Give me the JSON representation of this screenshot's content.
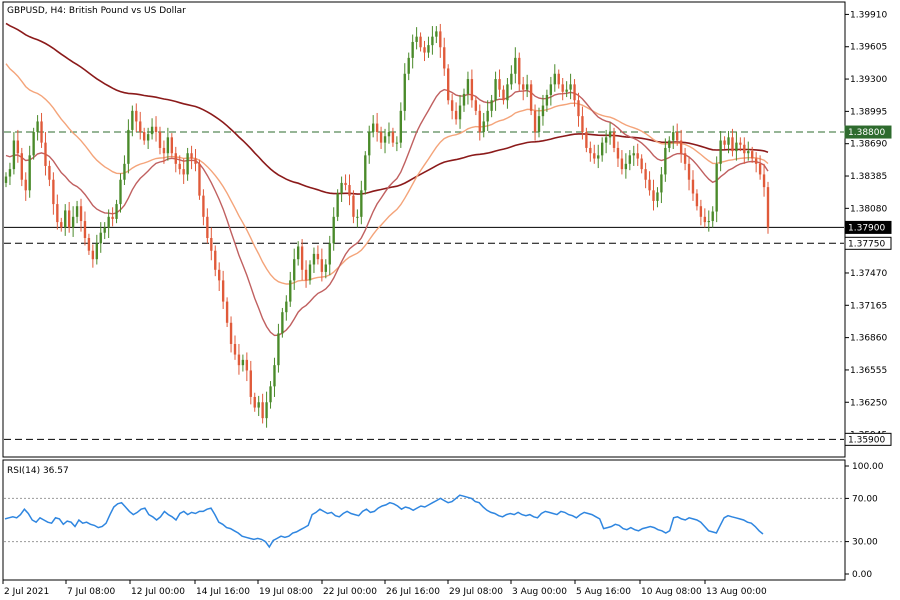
{
  "chart_data": [
    {
      "type": "candlestick",
      "title": "GBPUSD, H4:  British Pound vs US Dollar",
      "price_ticks": [
        "1.39910",
        "1.39605",
        "1.39300",
        "1.38995",
        "1.38690",
        "1.38385",
        "1.38080",
        "1.37470",
        "1.37165",
        "1.36860",
        "1.36555",
        "1.36250",
        "1.35945"
      ],
      "ylim": [
        1.3579,
        1.3998
      ],
      "levels": [
        {
          "label": "1.38800",
          "value": 1.388,
          "style": "dashed",
          "color": "#2e6b2e",
          "badge_bg": "#2e6b2e",
          "badge_fg": "#ffffff"
        },
        {
          "label": "1.37900",
          "value": 1.379,
          "style": "solid",
          "color": "#000000",
          "badge_bg": "#000000",
          "badge_fg": "#ffffff"
        },
        {
          "label": "1.37750",
          "value": 1.3775,
          "style": "dashed",
          "color": "#000000",
          "badge_bg": "#ffffff",
          "badge_fg": "#000000"
        },
        {
          "label": "1.35900",
          "value": 1.359,
          "style": "dashed",
          "color": "#000000",
          "badge_bg": "#ffffff",
          "badge_fg": "#000000"
        }
      ],
      "x_labels": [
        "2 Jul 2021",
        "7 Jul 08:00",
        "12 Jul 00:00",
        "14 Jul 16:00",
        "19 Jul 08:00",
        "22 Jul 00:00",
        "26 Jul 16:00",
        "29 Jul 08:00",
        "3 Aug 00:00",
        "5 Aug 16:00",
        "10 Aug 08:00",
        "13 Aug 00:00"
      ],
      "colors": {
        "bull": "#4a8a2a",
        "bear": "#e05a3a",
        "ma_slow": "#8b1a1a",
        "ma_mid": "#c06060",
        "ma_fast": "#f4a47a"
      },
      "closes": [
        1.3838,
        1.3845,
        1.3872,
        1.386,
        1.3835,
        1.3825,
        1.3858,
        1.388,
        1.389,
        1.387,
        1.3848,
        1.3835,
        1.3812,
        1.3795,
        1.379,
        1.3806,
        1.379,
        1.38,
        1.381,
        1.3796,
        1.378,
        1.3768,
        1.376,
        1.3775,
        1.3785,
        1.379,
        1.38,
        1.3798,
        1.3812,
        1.3835,
        1.385,
        1.3882,
        1.39,
        1.389,
        1.388,
        1.3872,
        1.3878,
        1.3885,
        1.388,
        1.3865,
        1.386,
        1.3875,
        1.386,
        1.385,
        1.3845,
        1.384,
        1.386,
        1.3855,
        1.385,
        1.382,
        1.38,
        1.378,
        1.3768,
        1.375,
        1.374,
        1.372,
        1.37,
        1.368,
        1.367,
        1.366,
        1.3665,
        1.3655,
        1.363,
        1.362,
        1.3625,
        1.361,
        1.3625,
        1.364,
        1.366,
        1.369,
        1.371,
        1.372,
        1.374,
        1.376,
        1.3772,
        1.375,
        1.374,
        1.3755,
        1.3765,
        1.376,
        1.3748,
        1.3755,
        1.3775,
        1.38,
        1.3822,
        1.3832,
        1.383,
        1.382,
        1.38,
        1.38,
        1.3825,
        1.3858,
        1.388,
        1.3888,
        1.388,
        1.387,
        1.3876,
        1.388,
        1.387,
        1.387,
        1.39,
        1.3935,
        1.395,
        1.3965,
        1.397,
        1.396,
        1.3955,
        1.3962,
        1.397,
        1.3975,
        1.396,
        1.394,
        1.391,
        1.39,
        1.3892,
        1.3905,
        1.3916,
        1.393,
        1.391,
        1.39,
        1.388,
        1.389,
        1.39,
        1.391,
        1.393,
        1.392,
        1.391,
        1.3925,
        1.3935,
        1.395,
        1.3925,
        1.392,
        1.3925,
        1.39,
        1.388,
        1.3895,
        1.3905,
        1.3915,
        1.3925,
        1.3935,
        1.3925,
        1.3918,
        1.392,
        1.3925,
        1.391,
        1.3895,
        1.388,
        1.3865,
        1.386,
        1.3855,
        1.3858,
        1.387,
        1.3875,
        1.388,
        1.3865,
        1.3855,
        1.3845,
        1.385,
        1.3858,
        1.386,
        1.3855,
        1.3845,
        1.3835,
        1.3825,
        1.3815,
        1.3823,
        1.384,
        1.3865,
        1.3872,
        1.388,
        1.3872,
        1.386,
        1.385,
        1.3835,
        1.3822,
        1.381,
        1.38,
        1.3795,
        1.3796,
        1.3805,
        1.385,
        1.3872,
        1.3868,
        1.3875,
        1.3862,
        1.387,
        1.3868,
        1.386,
        1.3862,
        1.3855,
        1.385,
        1.384,
        1.3828,
        1.379
      ],
      "rsi": {
        "label": "RSI(14) 36.57",
        "ticks": [
          "100.00",
          "70.00",
          "30.00",
          "0.00"
        ],
        "ylim": [
          0,
          100
        ],
        "levels": [
          70,
          30
        ],
        "color": "#2f86e0",
        "values": [
          51,
          52,
          53,
          52,
          55,
          60,
          56,
          50,
          48,
          52,
          50,
          48,
          47,
          52,
          51,
          46,
          49,
          48,
          44,
          50,
          47,
          48,
          46,
          45,
          43,
          44,
          47,
          55,
          62,
          65,
          66,
          62,
          58,
          55,
          57,
          60,
          61,
          55,
          53,
          50,
          53,
          58,
          55,
          53,
          50,
          56,
          58,
          55,
          57,
          56,
          58,
          58,
          60,
          61,
          55,
          48,
          46,
          43,
          42,
          40,
          38,
          35,
          34,
          33,
          32,
          33,
          32,
          30,
          25,
          31,
          33,
          35,
          34,
          35,
          38,
          39,
          41,
          43,
          45,
          55,
          57,
          60,
          58,
          56,
          57,
          54,
          53,
          56,
          58,
          56,
          55,
          54,
          58,
          60,
          57,
          58,
          61,
          63,
          64,
          66,
          65,
          63,
          60,
          62,
          61,
          59,
          61,
          63,
          62,
          64,
          66,
          68,
          70,
          68,
          66,
          67,
          70,
          73,
          72,
          71,
          70,
          67,
          66,
          62,
          59,
          57,
          56,
          54,
          53,
          55,
          56,
          55,
          57,
          55,
          54,
          55,
          53,
          52,
          56,
          58,
          57,
          56,
          55,
          58,
          57,
          55,
          54,
          52,
          55,
          57,
          56,
          55,
          53,
          51,
          42,
          43,
          44,
          46,
          45,
          42,
          41,
          43,
          41,
          40,
          42,
          43,
          44,
          43,
          41,
          40,
          38,
          40,
          52,
          53,
          51,
          50,
          52,
          51,
          50,
          48,
          44,
          40,
          39,
          38,
          45,
          52,
          54,
          53,
          52,
          51,
          50,
          48,
          47,
          44,
          40,
          37
        ]
      }
    }
  ]
}
